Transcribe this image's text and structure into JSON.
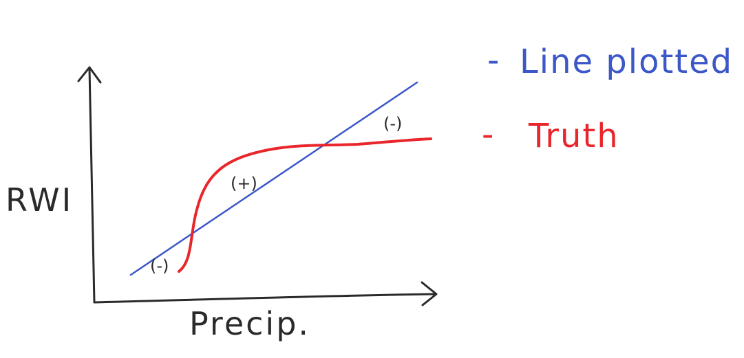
{
  "colors": {
    "axis": "#2a2a2a",
    "fitted_line": "#3b57c8",
    "truth_curve": "#e8262b",
    "paper": "#ffffff"
  },
  "axes": {
    "x_label": "Precip.",
    "y_label": "RWI"
  },
  "annotations": {
    "lower_left": "(-)",
    "middle": "(+)",
    "upper_right": "(-)"
  },
  "legend": {
    "fitted": {
      "dash": "-",
      "label": "Line plotted"
    },
    "truth": {
      "dash": "-",
      "label": "Truth"
    }
  }
}
